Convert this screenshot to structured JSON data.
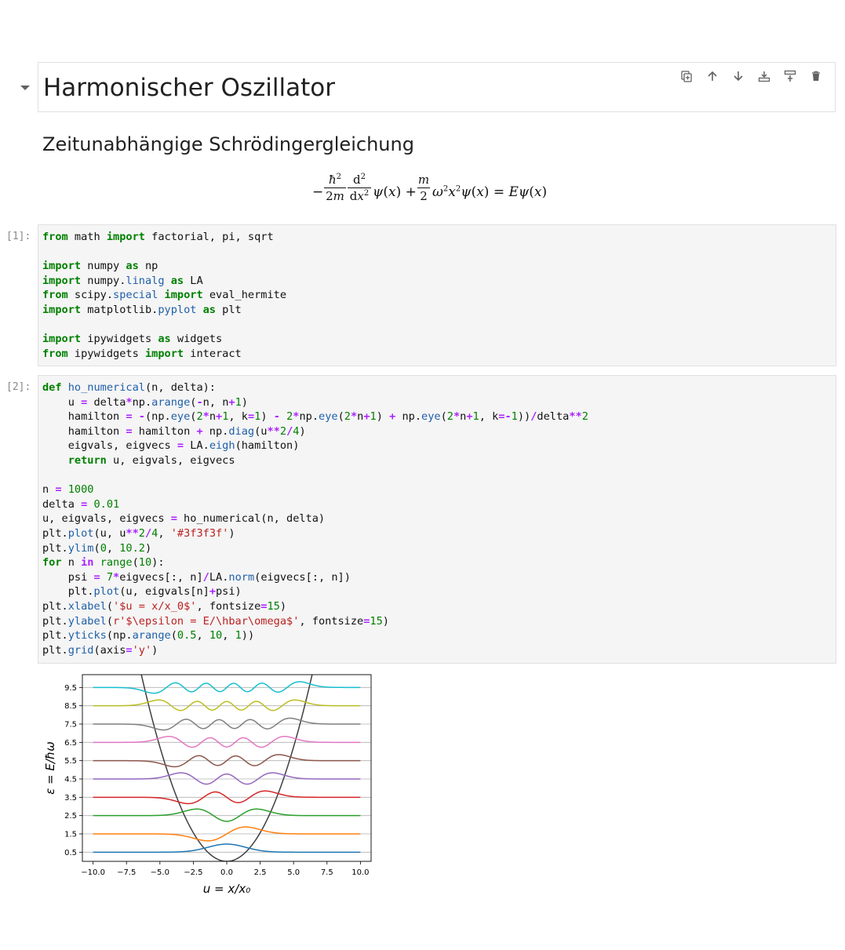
{
  "markdown": {
    "title": "Harmonischer Oszillator",
    "subtitle": "Zeitunabhängige Schrödingergleichung"
  },
  "toolbar": [
    "duplicate-icon",
    "move-up-icon",
    "move-down-icon",
    "insert-above-icon",
    "insert-below-icon",
    "delete-icon"
  ],
  "cells": [
    {
      "prompt": "[1]:"
    },
    {
      "prompt": "[2]:"
    }
  ],
  "chart_data": {
    "type": "line",
    "xlabel": "u = x/x₀",
    "ylabel": "ε = E/ħω",
    "xlim": [
      -10.8,
      10.8
    ],
    "ylim": [
      0,
      10.2
    ],
    "xticks": [
      -10.0,
      -7.5,
      -5.0,
      -2.5,
      0.0,
      2.5,
      5.0,
      7.5,
      10.0
    ],
    "xtick_labels": [
      "−10.0",
      "−7.5",
      "−5.0",
      "−2.5",
      "0.0",
      "2.5",
      "5.0",
      "7.5",
      "10.0"
    ],
    "yticks": [
      0.5,
      1.5,
      2.5,
      3.5,
      4.5,
      5.5,
      6.5,
      7.5,
      8.5,
      9.5
    ],
    "ytick_labels": [
      "0.5",
      "1.5",
      "2.5",
      "3.5",
      "4.5",
      "5.5",
      "6.5",
      "7.5",
      "8.5",
      "9.5"
    ],
    "grid": "y",
    "potential": {
      "formula": "u^2/4",
      "color": "#3f3f3f"
    },
    "series": [
      {
        "n": 0,
        "energy": 0.5,
        "color": "#1f77b4"
      },
      {
        "n": 1,
        "energy": 1.5,
        "color": "#ff7f0e"
      },
      {
        "n": 2,
        "energy": 2.5,
        "color": "#2ca02c"
      },
      {
        "n": 3,
        "energy": 3.5,
        "color": "#d62728"
      },
      {
        "n": 4,
        "energy": 4.5,
        "color": "#9467bd"
      },
      {
        "n": 5,
        "energy": 5.5,
        "color": "#8c564b"
      },
      {
        "n": 6,
        "energy": 6.5,
        "color": "#e377c2"
      },
      {
        "n": 7,
        "energy": 7.5,
        "color": "#7f7f7f"
      },
      {
        "n": 8,
        "energy": 8.5,
        "color": "#bcbd22"
      },
      {
        "n": 9,
        "energy": 9.5,
        "color": "#17becf"
      }
    ]
  }
}
